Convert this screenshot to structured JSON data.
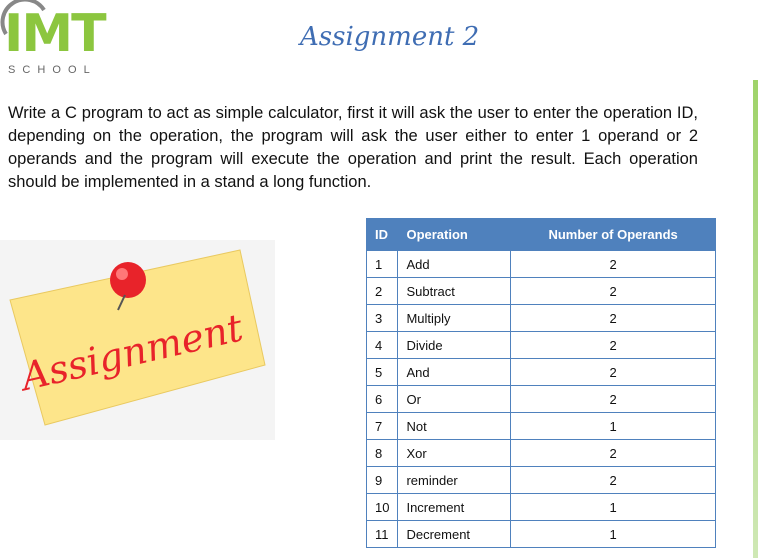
{
  "logo": {
    "name": "IMT",
    "tagline": "S C H O O L"
  },
  "title": "Assignment 2",
  "description": "Write a C program to act as simple calculator, first it will ask the user to enter the operation ID, depending on the operation, the program will ask the user either to enter 1 operand or 2 operands and the program will execute the operation and print the result. Each operation should be implemented in a stand a long function.",
  "sticky_note": "Assignment",
  "table": {
    "header": [
      "ID",
      "Operation",
      "Number of Operands"
    ],
    "rows": [
      [
        1,
        "Add",
        2
      ],
      [
        2,
        "Subtract",
        2
      ],
      [
        3,
        "Multiply",
        2
      ],
      [
        4,
        "Divide",
        2
      ],
      [
        5,
        "And",
        2
      ],
      [
        6,
        "Or",
        2
      ],
      [
        7,
        "Not",
        1
      ],
      [
        8,
        "Xor",
        2
      ],
      [
        9,
        "reminder",
        2
      ],
      [
        10,
        "Increment",
        1
      ],
      [
        11,
        "Decrement",
        1
      ]
    ]
  }
}
